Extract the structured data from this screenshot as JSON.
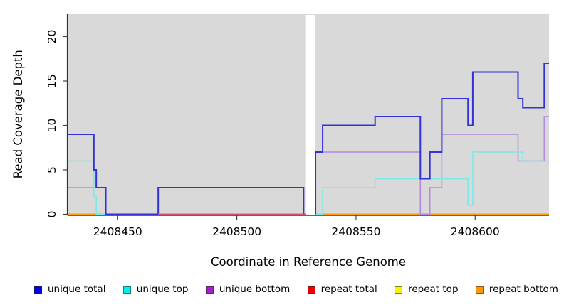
{
  "chart_data": {
    "type": "line",
    "subtype": "step-coverage",
    "title": "",
    "xlabel": "Coordinate in Reference Genome",
    "ylabel": "Read Coverage Depth",
    "xlim": [
      2408429,
      2408631
    ],
    "ylim": [
      0,
      22.6
    ],
    "grid": false,
    "panel_background": "#d9d9d9",
    "gap_region": {
      "from": 2408529,
      "to": 2408533,
      "color": "#ffffff"
    },
    "x_ticks": [
      {
        "value": 2408450,
        "label": "2408450"
      },
      {
        "value": 2408500,
        "label": "2408500"
      },
      {
        "value": 2408550,
        "label": "2408550"
      },
      {
        "value": 2408600,
        "label": "2408600"
      }
    ],
    "y_ticks": [
      {
        "value": 0,
        "label": "0"
      },
      {
        "value": 5,
        "label": "5"
      },
      {
        "value": 10,
        "label": "10"
      },
      {
        "value": 15,
        "label": "15"
      },
      {
        "value": 20,
        "label": "20"
      }
    ],
    "series": [
      {
        "name": "unique total",
        "line_color": "#3232d8",
        "line_width": 2.0,
        "steps": [
          [
            2408429,
            9
          ],
          [
            2408440,
            5
          ],
          [
            2408441,
            3
          ],
          [
            2408445,
            0
          ],
          [
            2408467,
            3
          ],
          [
            2408528,
            0
          ],
          [
            2408533,
            7
          ],
          [
            2408536,
            10
          ],
          [
            2408558,
            11
          ],
          [
            2408577,
            4
          ],
          [
            2408581,
            7
          ],
          [
            2408586,
            13
          ],
          [
            2408597,
            10
          ],
          [
            2408599,
            16
          ],
          [
            2408618,
            13
          ],
          [
            2408620,
            12
          ],
          [
            2408629,
            17
          ],
          [
            2408631,
            17
          ]
        ]
      },
      {
        "name": "unique top",
        "line_color": "#7de8e8",
        "line_width": 1.6,
        "steps": [
          [
            2408429,
            6
          ],
          [
            2408440,
            2
          ],
          [
            2408441,
            0
          ],
          [
            2408536,
            3
          ],
          [
            2408558,
            4
          ],
          [
            2408597,
            1
          ],
          [
            2408599,
            7
          ],
          [
            2408620,
            6
          ],
          [
            2408631,
            6
          ]
        ]
      },
      {
        "name": "unique bottom",
        "line_color": "#b389dd",
        "line_width": 1.6,
        "steps": [
          [
            2408429,
            3
          ],
          [
            2408445,
            0
          ],
          [
            2408533,
            7
          ],
          [
            2408577,
            0
          ],
          [
            2408581,
            3
          ],
          [
            2408586,
            9
          ],
          [
            2408618,
            6
          ],
          [
            2408629,
            11
          ],
          [
            2408631,
            11
          ]
        ]
      },
      {
        "name": "repeat total",
        "line_color": "#d4506e",
        "line_width": 1.6,
        "steps": [
          [
            2408429,
            0
          ],
          [
            2408631,
            0
          ]
        ]
      },
      {
        "name": "repeat top",
        "line_color": "#f5f500",
        "line_width": 1.6,
        "steps": [
          [
            2408429,
            0
          ],
          [
            2408631,
            0
          ]
        ]
      },
      {
        "name": "repeat bottom",
        "line_color": "#ff9c17",
        "line_width": 1.8,
        "steps": [
          [
            2408429,
            0
          ],
          [
            2408631,
            0
          ]
        ]
      }
    ],
    "draw_order": [
      "repeat top",
      "repeat total",
      "repeat bottom",
      "unique bottom",
      "unique top",
      "unique total"
    ],
    "overlay_segments": [
      {
        "color": "#d4506e",
        "y": 0,
        "from": 2408467,
        "to": 2408529,
        "width": 1.8
      }
    ],
    "legend_position": "bottom",
    "legend": [
      {
        "label": "unique total",
        "color": "#0000ee"
      },
      {
        "label": "unique top",
        "color": "#00eeee"
      },
      {
        "label": "unique bottom",
        "color": "#a020d0"
      },
      {
        "label": "repeat total",
        "color": "#ee0000"
      },
      {
        "label": "repeat top",
        "color": "#f5f500"
      },
      {
        "label": "repeat bottom",
        "color": "#ff9900"
      }
    ]
  }
}
